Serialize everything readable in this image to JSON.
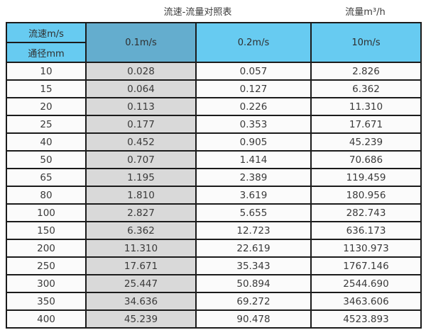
{
  "titles": {
    "left": "流速-流量对照表",
    "right": "流量m³/h"
  },
  "table": {
    "corner": {
      "top": "流速m/s",
      "bottom": "通径mm"
    },
    "velocity_headers": [
      "0.1m/s",
      "0.2m/s",
      "10m/s"
    ],
    "rows": [
      {
        "diameter": "10",
        "values": [
          "0.028",
          "0.057",
          "2.826"
        ]
      },
      {
        "diameter": "15",
        "values": [
          "0.064",
          "0.127",
          "6.362"
        ]
      },
      {
        "diameter": "20",
        "values": [
          "0.113",
          "0.226",
          "11.310"
        ]
      },
      {
        "diameter": "25",
        "values": [
          "0.177",
          "0.353",
          "17.671"
        ]
      },
      {
        "diameter": "40",
        "values": [
          "0.452",
          "0.905",
          "45.239"
        ]
      },
      {
        "diameter": "50",
        "values": [
          "0.707",
          "1.414",
          "70.686"
        ]
      },
      {
        "diameter": "65",
        "values": [
          "1.195",
          "2.389",
          "119.459"
        ]
      },
      {
        "diameter": "80",
        "values": [
          "1.810",
          "3.619",
          "180.956"
        ]
      },
      {
        "diameter": "100",
        "values": [
          "2.827",
          "5.655",
          "282.743"
        ]
      },
      {
        "diameter": "150",
        "values": [
          "6.362",
          "12.723",
          "636.173"
        ]
      },
      {
        "diameter": "200",
        "values": [
          "11.310",
          "22.619",
          "1130.973"
        ]
      },
      {
        "diameter": "250",
        "values": [
          "17.671",
          "35.343",
          "1767.146"
        ]
      },
      {
        "diameter": "300",
        "values": [
          "25.447",
          "50.894",
          "2544.690"
        ]
      },
      {
        "diameter": "350",
        "values": [
          "34.636",
          "69.272",
          "3463.606"
        ]
      },
      {
        "diameter": "400",
        "values": [
          "45.239",
          "90.478",
          "4523.893"
        ]
      }
    ]
  },
  "colors": {
    "header_light_blue": "#67cbf1",
    "header_dark_blue": "#64adce",
    "highlight_column_gray": "#d9d9d9",
    "row_background": "#fbfbfb",
    "border": "#1b1b1b",
    "text": "#333333"
  },
  "chart_data": {
    "type": "table",
    "title": "流速-流量对照表",
    "flow_unit_label": "流量m³/h",
    "columns": [
      "通径mm",
      "0.1m/s",
      "0.2m/s",
      "10m/s"
    ],
    "rows": [
      [
        10,
        0.028,
        0.057,
        2.826
      ],
      [
        15,
        0.064,
        0.127,
        6.362
      ],
      [
        20,
        0.113,
        0.226,
        11.31
      ],
      [
        25,
        0.177,
        0.353,
        17.671
      ],
      [
        40,
        0.452,
        0.905,
        45.239
      ],
      [
        50,
        0.707,
        1.414,
        70.686
      ],
      [
        65,
        1.195,
        2.389,
        119.459
      ],
      [
        80,
        1.81,
        3.619,
        180.956
      ],
      [
        100,
        2.827,
        5.655,
        282.743
      ],
      [
        150,
        6.362,
        12.723,
        636.173
      ],
      [
        200,
        11.31,
        22.619,
        1130.973
      ],
      [
        250,
        17.671,
        35.343,
        1767.146
      ],
      [
        300,
        25.447,
        50.894,
        2544.69
      ],
      [
        350,
        34.636,
        69.272,
        3463.606
      ],
      [
        400,
        45.239,
        90.478,
        4523.893
      ]
    ],
    "layout": {
      "highlighted_column": "0.1m/s",
      "header_rows": 2,
      "grid": true
    }
  }
}
